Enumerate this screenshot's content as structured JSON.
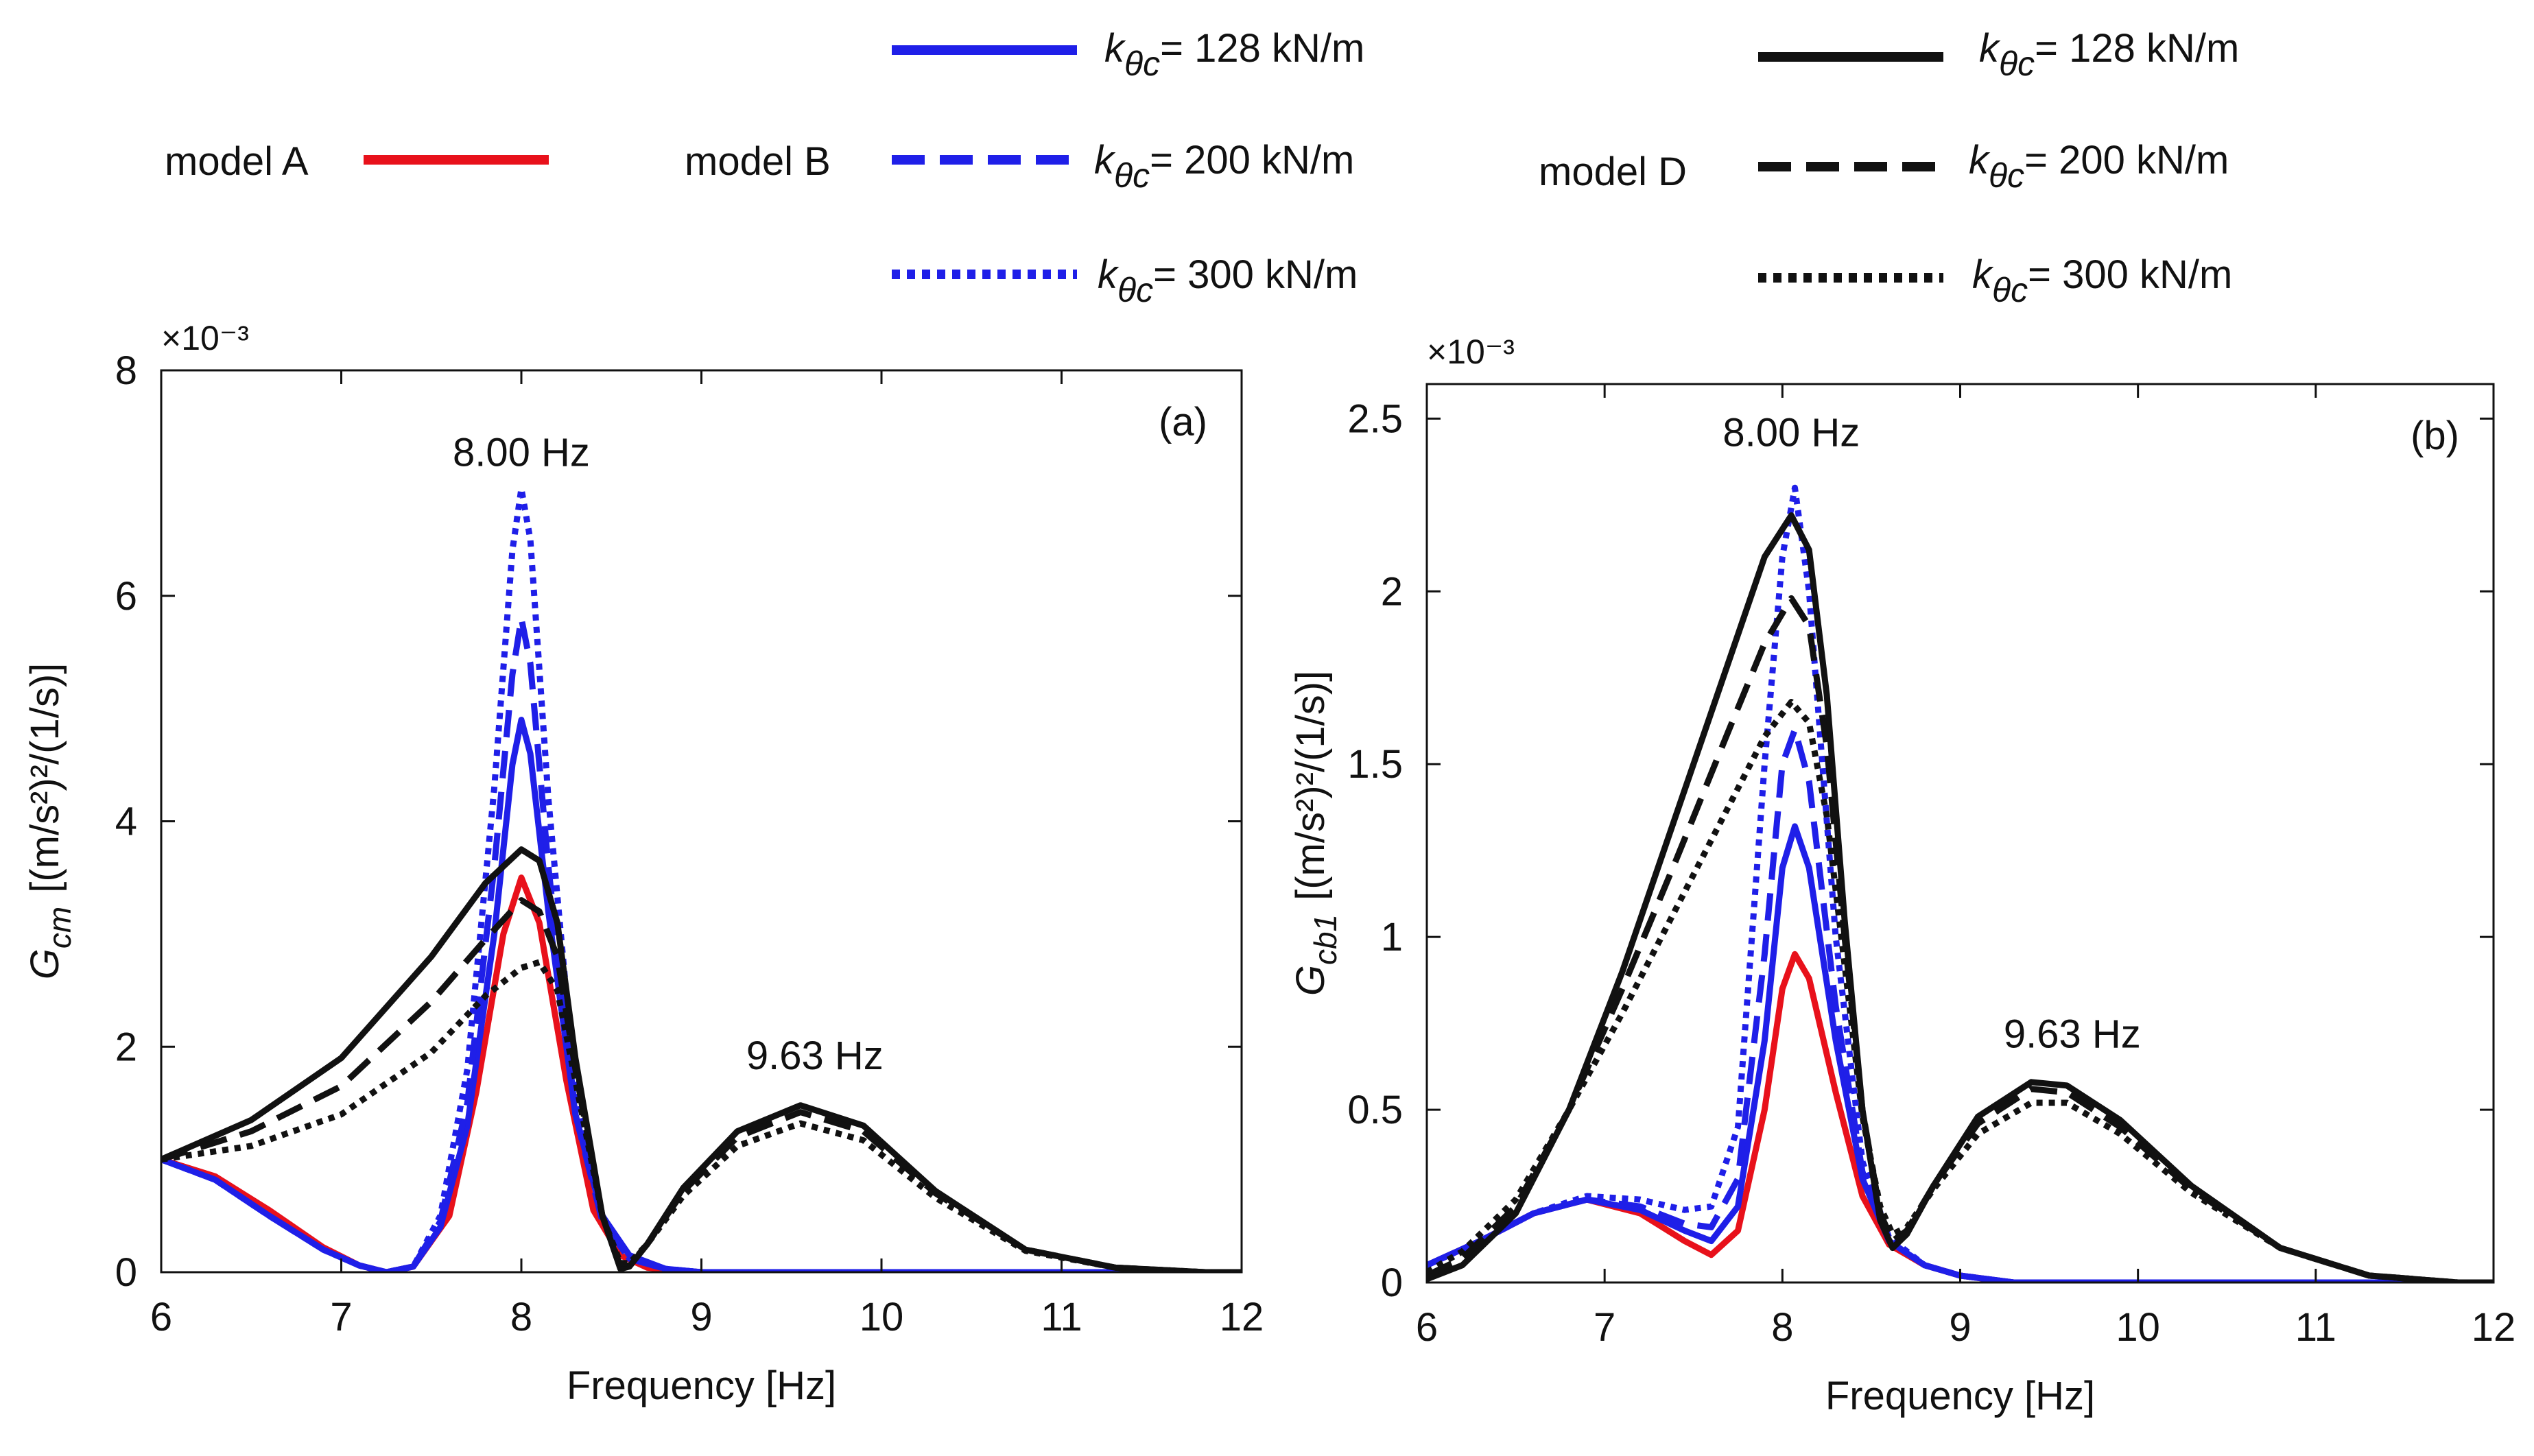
{
  "legend": {
    "model_a": {
      "label": "model A",
      "color": "#e8111b",
      "style": "solid"
    },
    "model_b": {
      "label": "model B",
      "color": "#1f1fe8",
      "entries": [
        {
          "symbol": "k",
          "sub": "θc",
          "text": "= 128 kN/m",
          "style": "solid"
        },
        {
          "symbol": "k",
          "sub": "θc",
          "text": "= 200 kN/m",
          "style": "dashed"
        },
        {
          "symbol": "k",
          "sub": "θc",
          "text": "= 300 kN/m",
          "style": "dotted"
        }
      ]
    },
    "model_d": {
      "label": "model D",
      "color": "#111111",
      "entries": [
        {
          "symbol": "k",
          "sub": "θc",
          "text": "= 128 kN/m",
          "style": "solid"
        },
        {
          "symbol": "k",
          "sub": "θc",
          "text": "= 200 kN/m",
          "style": "dashed"
        },
        {
          "symbol": "k",
          "sub": "θc",
          "text": "= 300 kN/m",
          "style": "dotted"
        }
      ]
    }
  },
  "chart_data": [
    {
      "type": "line",
      "panel_label": "(a)",
      "xlabel": "Frequency [Hz]",
      "ylabel_symbol": "G",
      "ylabel_sub": "cm",
      "ylabel_unit": "[(m/s²)²/(1/s)]",
      "y_multiplier": "×10⁻³",
      "xlim": [
        6,
        12
      ],
      "ylim": [
        0,
        8
      ],
      "xticks": [
        6,
        7,
        8,
        9,
        10,
        11,
        12
      ],
      "xtick_labels": [
        "6",
        "7",
        "8",
        "9",
        "10",
        "11",
        "12"
      ],
      "yticks": [
        0,
        2,
        4,
        6,
        8
      ],
      "ytick_labels": [
        "0",
        "2",
        "4",
        "6",
        "8"
      ],
      "annotations": [
        {
          "text": "8.00 Hz",
          "x": 8.0,
          "y": 7.15
        },
        {
          "text": "9.63 Hz",
          "x": 9.63,
          "y": 1.8
        }
      ],
      "series": [
        {
          "name": "model A",
          "color": "#e8111b",
          "style": "solid",
          "x": [
            6.0,
            6.3,
            6.6,
            6.9,
            7.1,
            7.25,
            7.4,
            7.6,
            7.75,
            7.9,
            8.0,
            8.1,
            8.25,
            8.4,
            8.55,
            8.7,
            9.0,
            10.0,
            12.0
          ],
          "y": [
            1.0,
            0.85,
            0.55,
            0.22,
            0.06,
            0.0,
            0.05,
            0.5,
            1.6,
            3.0,
            3.5,
            3.1,
            1.7,
            0.55,
            0.15,
            0.04,
            0.0,
            0.0,
            0.0
          ]
        },
        {
          "name": "model B, kθc = 128 kN/m",
          "color": "#1f1fe8",
          "style": "solid",
          "x": [
            6.0,
            6.3,
            6.6,
            6.9,
            7.1,
            7.25,
            7.4,
            7.55,
            7.7,
            7.85,
            7.95,
            8.0,
            8.05,
            8.15,
            8.3,
            8.45,
            8.6,
            8.8,
            9.0,
            10.0,
            12.0
          ],
          "y": [
            1.0,
            0.82,
            0.5,
            0.2,
            0.06,
            0.0,
            0.05,
            0.4,
            1.3,
            3.0,
            4.5,
            4.9,
            4.6,
            3.2,
            1.4,
            0.5,
            0.15,
            0.03,
            0.0,
            0.0,
            0.0
          ]
        },
        {
          "name": "model B, kθc = 200 kN/m",
          "color": "#1f1fe8",
          "style": "dashed",
          "x": [
            6.0,
            6.3,
            6.6,
            6.9,
            7.1,
            7.25,
            7.4,
            7.55,
            7.7,
            7.85,
            7.95,
            8.0,
            8.05,
            8.15,
            8.3,
            8.45,
            8.6,
            8.8,
            9.0,
            10.0,
            12.0
          ],
          "y": [
            1.0,
            0.82,
            0.5,
            0.2,
            0.06,
            0.0,
            0.05,
            0.45,
            1.5,
            3.6,
            5.3,
            5.8,
            5.4,
            3.6,
            1.4,
            0.45,
            0.12,
            0.03,
            0.0,
            0.0,
            0.0
          ]
        },
        {
          "name": "model B, kθc = 300 kN/m",
          "color": "#1f1fe8",
          "style": "dotted",
          "x": [
            6.0,
            6.3,
            6.6,
            6.9,
            7.1,
            7.25,
            7.4,
            7.55,
            7.7,
            7.85,
            7.95,
            8.0,
            8.05,
            8.15,
            8.3,
            8.45,
            8.6,
            8.8,
            9.0,
            10.0,
            12.0
          ],
          "y": [
            1.0,
            0.82,
            0.5,
            0.2,
            0.06,
            0.0,
            0.05,
            0.5,
            1.8,
            4.3,
            6.4,
            6.95,
            6.5,
            4.2,
            1.6,
            0.5,
            0.12,
            0.03,
            0.0,
            0.0,
            0.0
          ]
        },
        {
          "name": "model D, kθc = 128 kN/m",
          "color": "#111111",
          "style": "solid",
          "x": [
            6.0,
            6.5,
            7.0,
            7.5,
            7.8,
            8.0,
            8.1,
            8.2,
            8.3,
            8.45,
            8.55,
            8.6,
            8.7,
            8.9,
            9.2,
            9.55,
            9.9,
            10.3,
            10.8,
            11.3,
            11.8,
            12.0
          ],
          "y": [
            1.0,
            1.35,
            1.9,
            2.8,
            3.45,
            3.75,
            3.65,
            3.1,
            1.9,
            0.5,
            0.03,
            0.05,
            0.25,
            0.75,
            1.25,
            1.48,
            1.3,
            0.72,
            0.2,
            0.04,
            0.0,
            0.0
          ]
        },
        {
          "name": "model D, kθc = 200 kN/m",
          "color": "#111111",
          "style": "dashed",
          "x": [
            6.0,
            6.5,
            7.0,
            7.5,
            7.8,
            8.0,
            8.1,
            8.2,
            8.3,
            8.45,
            8.55,
            8.6,
            8.7,
            8.9,
            9.2,
            9.55,
            9.9,
            10.3,
            10.8,
            11.3,
            11.8,
            12.0
          ],
          "y": [
            1.0,
            1.25,
            1.65,
            2.4,
            2.95,
            3.3,
            3.2,
            2.8,
            1.8,
            0.5,
            0.05,
            0.06,
            0.25,
            0.72,
            1.2,
            1.42,
            1.25,
            0.7,
            0.2,
            0.04,
            0.0,
            0.0
          ]
        },
        {
          "name": "model D, kθc = 300 kN/m",
          "color": "#111111",
          "style": "dotted",
          "x": [
            6.0,
            6.5,
            7.0,
            7.5,
            7.8,
            8.0,
            8.1,
            8.2,
            8.3,
            8.45,
            8.55,
            8.6,
            8.7,
            8.9,
            9.2,
            9.55,
            9.9,
            10.3,
            10.8,
            11.3,
            11.8,
            12.0
          ],
          "y": [
            1.0,
            1.12,
            1.4,
            1.95,
            2.45,
            2.7,
            2.75,
            2.5,
            1.7,
            0.5,
            0.08,
            0.08,
            0.25,
            0.68,
            1.12,
            1.32,
            1.17,
            0.66,
            0.19,
            0.04,
            0.0,
            0.0
          ]
        }
      ]
    },
    {
      "type": "line",
      "panel_label": "(b)",
      "xlabel": "Frequency [Hz]",
      "ylabel_symbol": "G",
      "ylabel_sub": "cb1",
      "ylabel_unit": "[(m/s²)²/(1/s)]",
      "y_multiplier": "×10⁻³",
      "xlim": [
        6,
        12
      ],
      "ylim": [
        0,
        2.6
      ],
      "xticks": [
        6,
        7,
        8,
        9,
        10,
        11,
        12
      ],
      "xtick_labels": [
        "6",
        "7",
        "8",
        "9",
        "10",
        "11",
        "12"
      ],
      "yticks": [
        0,
        0.5,
        1,
        1.5,
        2,
        2.5
      ],
      "ytick_labels": [
        "0",
        "0.5",
        "1",
        "1.5",
        "2",
        "2.5"
      ],
      "annotations": [
        {
          "text": "8.00 Hz",
          "x": 8.05,
          "y": 2.42
        },
        {
          "text": "9.63 Hz",
          "x": 9.63,
          "y": 0.68
        }
      ],
      "series": [
        {
          "name": "model A",
          "color": "#e8111b",
          "style": "solid",
          "x": [
            6.0,
            6.3,
            6.6,
            6.9,
            7.2,
            7.45,
            7.6,
            7.75,
            7.9,
            8.0,
            8.07,
            8.15,
            8.3,
            8.45,
            8.6,
            8.8,
            9.0,
            9.3,
            10.0,
            12.0
          ],
          "y": [
            0.05,
            0.12,
            0.2,
            0.24,
            0.2,
            0.12,
            0.08,
            0.15,
            0.5,
            0.85,
            0.95,
            0.88,
            0.55,
            0.25,
            0.11,
            0.05,
            0.02,
            0.0,
            0.0,
            0.0
          ]
        },
        {
          "name": "model B, kθc = 128 kN/m",
          "color": "#1f1fe8",
          "style": "solid",
          "x": [
            6.0,
            6.3,
            6.6,
            6.9,
            7.2,
            7.45,
            7.6,
            7.75,
            7.9,
            8.0,
            8.07,
            8.15,
            8.3,
            8.45,
            8.6,
            8.8,
            9.0,
            9.3,
            10.0,
            12.0
          ],
          "y": [
            0.05,
            0.12,
            0.2,
            0.24,
            0.21,
            0.15,
            0.12,
            0.22,
            0.7,
            1.2,
            1.32,
            1.2,
            0.7,
            0.3,
            0.12,
            0.05,
            0.02,
            0.0,
            0.0,
            0.0
          ]
        },
        {
          "name": "model B, kθc = 200 kN/m",
          "color": "#1f1fe8",
          "style": "dashed",
          "x": [
            6.0,
            6.3,
            6.6,
            6.9,
            7.2,
            7.45,
            7.6,
            7.75,
            7.9,
            8.0,
            8.07,
            8.15,
            8.3,
            8.45,
            8.6,
            8.8,
            9.0,
            9.3,
            10.0,
            12.0
          ],
          "y": [
            0.05,
            0.12,
            0.2,
            0.24,
            0.22,
            0.17,
            0.16,
            0.3,
            0.95,
            1.5,
            1.6,
            1.45,
            0.8,
            0.32,
            0.12,
            0.05,
            0.02,
            0.0,
            0.0,
            0.0
          ]
        },
        {
          "name": "model B, kθc = 300 kN/m",
          "color": "#1f1fe8",
          "style": "dotted",
          "x": [
            6.0,
            6.3,
            6.6,
            6.9,
            7.2,
            7.45,
            7.6,
            7.75,
            7.9,
            8.0,
            8.07,
            8.15,
            8.3,
            8.45,
            8.6,
            8.8,
            9.0,
            9.3,
            10.0,
            12.0
          ],
          "y": [
            0.05,
            0.12,
            0.2,
            0.25,
            0.24,
            0.21,
            0.22,
            0.45,
            1.5,
            2.1,
            2.3,
            2.0,
            1.0,
            0.35,
            0.13,
            0.05,
            0.02,
            0.0,
            0.0,
            0.0
          ]
        },
        {
          "name": "model D, kθc = 128 kN/m",
          "color": "#111111",
          "style": "solid",
          "x": [
            6.0,
            6.2,
            6.5,
            6.8,
            7.1,
            7.4,
            7.7,
            7.9,
            8.05,
            8.15,
            8.25,
            8.35,
            8.45,
            8.55,
            8.62,
            8.7,
            8.85,
            9.1,
            9.4,
            9.6,
            9.9,
            10.3,
            10.8,
            11.3,
            11.8,
            12.0
          ],
          "y": [
            0.01,
            0.05,
            0.2,
            0.5,
            0.9,
            1.35,
            1.8,
            2.1,
            2.22,
            2.12,
            1.7,
            1.05,
            0.5,
            0.18,
            0.1,
            0.14,
            0.28,
            0.48,
            0.58,
            0.57,
            0.47,
            0.28,
            0.1,
            0.02,
            0.0,
            0.0
          ]
        },
        {
          "name": "model D, kθc = 200 kN/m",
          "color": "#111111",
          "style": "dashed",
          "x": [
            6.0,
            6.2,
            6.5,
            6.8,
            7.1,
            7.4,
            7.7,
            7.9,
            8.05,
            8.15,
            8.25,
            8.35,
            8.45,
            8.55,
            8.62,
            8.7,
            8.85,
            9.1,
            9.4,
            9.6,
            9.9,
            10.3,
            10.8,
            11.3,
            11.8,
            12.0
          ],
          "y": [
            0.02,
            0.07,
            0.22,
            0.5,
            0.85,
            1.22,
            1.6,
            1.85,
            1.98,
            1.9,
            1.55,
            1.0,
            0.5,
            0.2,
            0.12,
            0.15,
            0.28,
            0.46,
            0.56,
            0.55,
            0.45,
            0.27,
            0.1,
            0.02,
            0.0,
            0.0
          ]
        },
        {
          "name": "model D, kθc = 300 kN/m",
          "color": "#111111",
          "style": "dotted",
          "x": [
            6.0,
            6.2,
            6.5,
            6.8,
            7.1,
            7.4,
            7.7,
            7.9,
            8.05,
            8.15,
            8.25,
            8.35,
            8.45,
            8.55,
            8.62,
            8.7,
            8.85,
            9.1,
            9.4,
            9.6,
            9.9,
            10.3,
            10.8,
            11.3,
            11.8,
            12.0
          ],
          "y": [
            0.03,
            0.09,
            0.24,
            0.5,
            0.78,
            1.08,
            1.38,
            1.58,
            1.68,
            1.62,
            1.35,
            0.92,
            0.48,
            0.22,
            0.14,
            0.16,
            0.27,
            0.43,
            0.52,
            0.52,
            0.43,
            0.26,
            0.1,
            0.02,
            0.0,
            0.0
          ]
        }
      ]
    }
  ]
}
